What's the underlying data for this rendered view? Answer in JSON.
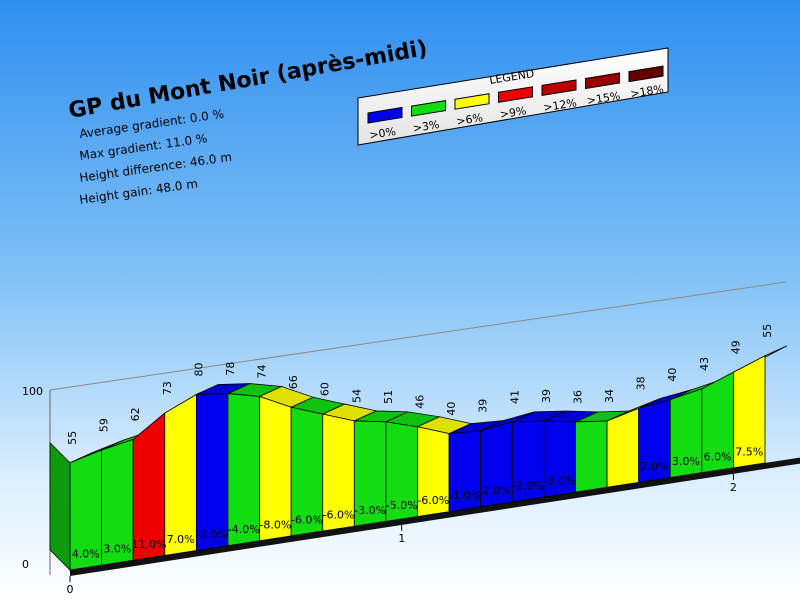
{
  "chart_data": {
    "type": "area",
    "title": "GP du Mont Noir (après-midi)",
    "stats": [
      "Average gradient:  0.0 %",
      "Max gradient:  11.0 %",
      "Height difference: 46.0 m",
      "Height gain: 48.0 m"
    ],
    "y_ticks": [
      "100",
      "0"
    ],
    "x_ticks": [
      "0",
      "1",
      "2"
    ],
    "ylim": [
      0,
      100
    ],
    "legend": {
      "title": "LEGEND",
      "items": [
        {
          "label": ">0%",
          "color": "#0000ee"
        },
        {
          "label": ">3%",
          "color": "#11dd11"
        },
        {
          "label": ">6%",
          "color": "#ffff00"
        },
        {
          "label": ">9%",
          "color": "#ee0000"
        },
        {
          "label": ">12%",
          "color": "#bb0000"
        },
        {
          "label": ">15%",
          "color": "#990000"
        },
        {
          "label": ">18%",
          "color": "#660000"
        }
      ]
    },
    "altitudes": [
      55,
      59,
      62,
      73,
      80,
      78,
      74,
      66,
      60,
      54,
      51,
      46,
      40,
      39,
      41,
      39,
      36,
      34,
      38,
      40,
      43,
      49,
      55
    ],
    "altitude_labels": [
      "55",
      "59",
      "62",
      "73",
      "80",
      "78",
      "74",
      "66",
      "60",
      "54",
      "51",
      "46",
      "40",
      "39",
      "41",
      "39",
      "36",
      "34",
      "38",
      "40",
      "43",
      "49",
      "55"
    ],
    "gradients": [
      "4.0%",
      "3.0%",
      "11.0%",
      "7.0%",
      "-2.0%",
      "-4.0%",
      "-8.0%",
      "-6.0%",
      "-6.0%",
      "-3.0%",
      "-5.0%",
      "-6.0%",
      "-1.0%",
      "2.0%",
      "-2.0%",
      "-3.0%",
      "",
      "",
      "2.0%",
      "3.0%",
      "6.0%",
      "7.5%"
    ],
    "segment_colors": [
      "#11dd11",
      "#11dd11",
      "#ee0000",
      "#ffff00",
      "#0000ee",
      "#11dd11",
      "#ffff00",
      "#11dd11",
      "#ffff00",
      "#11dd11",
      "#11dd11",
      "#ffff00",
      "#0000ee",
      "#0000ee",
      "#0000ee",
      "#0000ee",
      "#11dd11",
      "#ffff00",
      "#0000ee",
      "#11dd11",
      "#11dd11",
      "#ffff00"
    ]
  }
}
